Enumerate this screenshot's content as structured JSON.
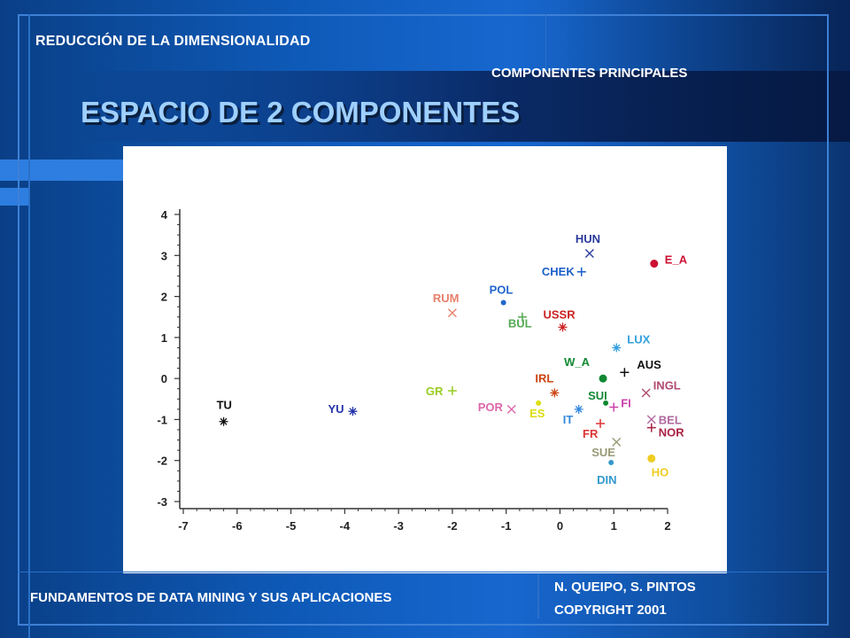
{
  "header": {
    "section": "REDUCCIÓN  DE LA DIMENSIONALIDAD",
    "subsection": "COMPONENTES PRINCIPALES",
    "title": "ESPACIO DE 2 COMPONENTES"
  },
  "footer": {
    "course": "FUNDAMENTOS DE DATA MINING Y SUS APLICACIONES",
    "authors": "N. QUEIPO, S. PINTOS",
    "copyright": "COPYRIGHT 2001"
  },
  "colors": {
    "background": "#1767cf",
    "title_text": "#9fd0ff",
    "plot_background": "#ffffff",
    "axis": "#333333"
  },
  "chart_data": {
    "type": "scatter",
    "title": "",
    "xlabel": "",
    "ylabel": "",
    "xlim": [
      -7,
      2
    ],
    "ylim": [
      -3,
      4
    ],
    "xticks": [
      -7,
      -6,
      -5,
      -4,
      -3,
      -2,
      -1,
      0,
      1,
      2
    ],
    "yticks": [
      -3,
      -2,
      -1,
      0,
      1,
      2,
      3,
      4
    ],
    "tick_labels_x": [
      "-7",
      "-6",
      "-5",
      "-4",
      "-3",
      "-2",
      "-1",
      "0",
      "1",
      "2"
    ],
    "tick_labels_y": [
      "-3",
      "-2",
      "-1",
      "0",
      "1",
      "2",
      "3",
      "4"
    ],
    "grid": false,
    "points": [
      {
        "label": "HUN",
        "x": 0.55,
        "y": 3.05,
        "marker": "x",
        "color": "#2a3a9c"
      },
      {
        "label": "E_A",
        "x": 1.75,
        "y": 2.8,
        "marker": "dot",
        "color": "#cc1133"
      },
      {
        "label": "CHEK",
        "x": 0.4,
        "y": 2.6,
        "marker": "plus",
        "color": "#1a5fc8"
      },
      {
        "label": "POL",
        "x": -1.05,
        "y": 1.85,
        "marker": "dot",
        "color": "#2266cc"
      },
      {
        "label": "RUM",
        "x": -2.0,
        "y": 1.6,
        "marker": "x",
        "color": "#e8806a"
      },
      {
        "label": "USSR",
        "x": 0.05,
        "y": 1.25,
        "marker": "star",
        "color": "#cc2222"
      },
      {
        "label": "BUL",
        "x": -0.7,
        "y": 1.5,
        "marker": "plus",
        "color": "#55aa55"
      },
      {
        "label": "LUX",
        "x": 1.05,
        "y": 0.75,
        "marker": "star",
        "color": "#33a0dd"
      },
      {
        "label": "AUS",
        "x": 1.2,
        "y": 0.15,
        "marker": "plus",
        "color": "#111111"
      },
      {
        "label": "W_A",
        "x": 0.8,
        "y": 0.0,
        "marker": "dot",
        "color": "#118833"
      },
      {
        "label": "INGL",
        "x": 1.6,
        "y": -0.35,
        "marker": "x",
        "color": "#b04a70"
      },
      {
        "label": "IRL",
        "x": -0.1,
        "y": -0.35,
        "marker": "star",
        "color": "#cc4411"
      },
      {
        "label": "SUI",
        "x": 0.85,
        "y": -0.6,
        "marker": "dot",
        "color": "#118833"
      },
      {
        "label": "GR",
        "x": -2.0,
        "y": -0.3,
        "marker": "plus",
        "color": "#99cc22"
      },
      {
        "label": "FI",
        "x": 1.0,
        "y": -0.7,
        "marker": "plus",
        "color": "#cc44aa"
      },
      {
        "label": "YU",
        "x": -3.85,
        "y": -0.8,
        "marker": "star",
        "color": "#2233aa"
      },
      {
        "label": "POR",
        "x": -0.9,
        "y": -0.75,
        "marker": "x",
        "color": "#dd66aa"
      },
      {
        "label": "ES",
        "x": -0.4,
        "y": -0.6,
        "marker": "dot",
        "color": "#dddd11"
      },
      {
        "label": "IT",
        "x": 0.35,
        "y": -0.75,
        "marker": "star",
        "color": "#3388dd"
      },
      {
        "label": "BEL",
        "x": 1.7,
        "y": -1.0,
        "marker": "x",
        "color": "#b06aa0"
      },
      {
        "label": "TU",
        "x": -6.25,
        "y": -1.05,
        "marker": "star",
        "color": "#111111"
      },
      {
        "label": "FR",
        "x": 0.75,
        "y": -1.1,
        "marker": "plus",
        "color": "#dd3333"
      },
      {
        "label": "NOR",
        "x": 1.7,
        "y": -1.2,
        "marker": "plus",
        "color": "#aa2244"
      },
      {
        "label": "SUE",
        "x": 1.05,
        "y": -1.55,
        "marker": "x",
        "color": "#999977"
      },
      {
        "label": "HO",
        "x": 1.7,
        "y": -1.95,
        "marker": "dot",
        "color": "#eecc22"
      },
      {
        "label": "DIN",
        "x": 0.95,
        "y": -2.05,
        "marker": "dot",
        "color": "#3399cc"
      }
    ]
  }
}
